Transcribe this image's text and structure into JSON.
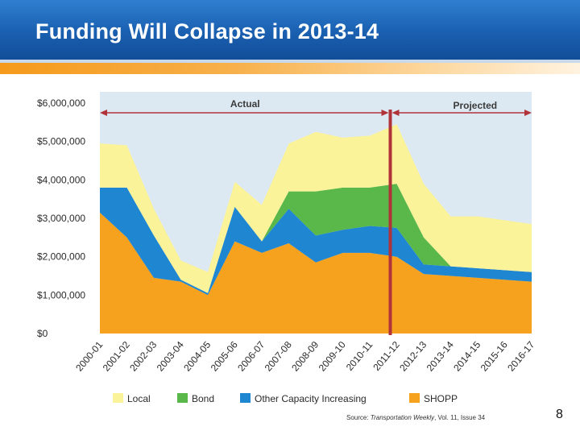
{
  "header": {
    "title": "Funding Will Collapse in 2013-14"
  },
  "footer": {
    "source_prefix": "Source: ",
    "source_title": "Transportation Weekly",
    "source_suffix": ", Vol. 11, Issue 34",
    "page_number": "8"
  },
  "colors": {
    "local": "#fbf39a",
    "bond": "#5ab84a",
    "other": "#1f86d2",
    "shopp": "#f7a21e",
    "plot_background": "#dde9f2",
    "divider": "#b0333a",
    "arrow": "#b0333a"
  },
  "chart_data": {
    "type": "area",
    "stacked": true,
    "title": "",
    "xlabel": "",
    "ylabel": "",
    "x": [
      "2000-01",
      "2001-02",
      "2002-03",
      "2003-04",
      "2004-05",
      "2005-06",
      "2006-07",
      "2007-08",
      "2008-09",
      "2009-10",
      "2010-11",
      "2011-12",
      "2012-13",
      "2013-14",
      "2014-15",
      "2015-16",
      "2016-17"
    ],
    "series": [
      {
        "name": "SHOPP",
        "color": "#f7a21e",
        "values": [
          3150000,
          2500000,
          1450000,
          1350000,
          1000000,
          2400000,
          2100000,
          2350000,
          1850000,
          2100000,
          2100000,
          2000000,
          1550000,
          1500000,
          1450000,
          1400000,
          1350000
        ]
      },
      {
        "name": "Other Capacity Increasing",
        "color": "#1f86d2",
        "values": [
          650000,
          1300000,
          1100000,
          50000,
          50000,
          900000,
          300000,
          900000,
          700000,
          600000,
          700000,
          750000,
          250000,
          250000,
          250000,
          250000,
          250000
        ]
      },
      {
        "name": "Bond",
        "color": "#5ab84a",
        "values": [
          0,
          0,
          0,
          0,
          0,
          0,
          0,
          450000,
          1150000,
          1100000,
          1000000,
          1150000,
          700000,
          0,
          0,
          0,
          0
        ]
      },
      {
        "name": "Local",
        "color": "#fbf39a",
        "values": [
          1150000,
          1100000,
          700000,
          500000,
          550000,
          650000,
          950000,
          1250000,
          1550000,
          1300000,
          1350000,
          1550000,
          1400000,
          1300000,
          1350000,
          1300000,
          1250000
        ]
      }
    ],
    "ylim": [
      0,
      6000000
    ],
    "y_ticks": [
      0,
      1000000,
      2000000,
      3000000,
      4000000,
      5000000,
      6000000
    ],
    "y_tick_labels": [
      "$0",
      "$1,000,000",
      "$2,000,000",
      "$3,000,000",
      "$4,000,000",
      "$5,000,000",
      "$6,000,000"
    ],
    "divider_after": "2011-12",
    "annotations": {
      "actual": "Actual",
      "projected": "Projected"
    },
    "legend_position": "bottom",
    "legend_order": [
      "Local",
      "Bond",
      "Other Capacity Increasing",
      "SHOPP"
    ]
  }
}
